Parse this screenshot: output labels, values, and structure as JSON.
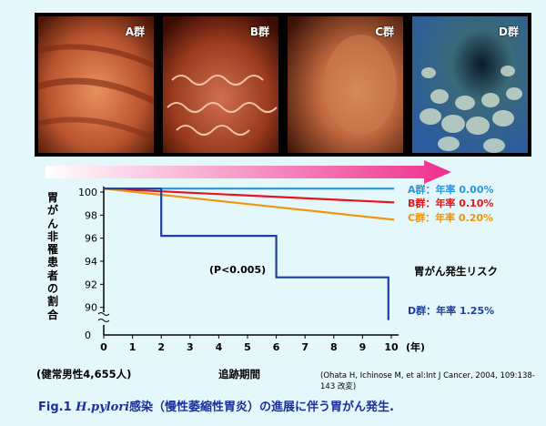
{
  "photos": [
    {
      "label": "A群",
      "base": "#b8542e",
      "dark": "#6a2210",
      "light": "#e08a5a"
    },
    {
      "label": "B群",
      "base": "#b04a2c",
      "dark": "#5a1a0c",
      "light": "#e8a888"
    },
    {
      "label": "C群",
      "base": "#c0683e",
      "dark": "#6a2e14",
      "light": "#e8a070"
    },
    {
      "label": "D群",
      "base": "#5a7a8a",
      "dark": "#1e3a4a",
      "light": "#bcd4dc"
    }
  ],
  "ylabel": "胃がん非罹患者の割合",
  "risk_title": "胃がん発生リスク",
  "pvalue": "(P<0.005)",
  "x_unit": "(年)",
  "footer_left": "(健常男性4,655人)",
  "footer_mid": "追跡期間",
  "source": "(Ohata H, Ichinose M, et al:Int J Cancer, 2004, 109:138-143 改変)",
  "caption": {
    "prefix": "Fig.1",
    "italic": "H.pylori",
    "rest": "感染（慢性萎縮性胃炎）の進展に伴う胃がん発生."
  },
  "chart_data": {
    "type": "line",
    "xlabel": "追跡期間",
    "x_unit": "(年)",
    "ylabel": "胃がん非罹患者の割合",
    "xlim": [
      0,
      10
    ],
    "ylim": [
      88,
      100
    ],
    "y_axis_break": true,
    "x_ticks": [
      0,
      1,
      2,
      3,
      4,
      5,
      6,
      7,
      8,
      9,
      10
    ],
    "y_ticks": [
      88,
      90,
      92,
      94,
      96,
      98,
      100
    ],
    "y_extra_tick_label": "0",
    "series": [
      {
        "name": "A群",
        "label": "A群：年率 0.00%",
        "color": "#2a95e0",
        "points": [
          [
            0,
            100.3
          ],
          [
            10.1,
            100.3
          ]
        ]
      },
      {
        "name": "B群",
        "label": "B群：年率 0.10%",
        "color": "#e8141c",
        "points": [
          [
            0,
            100.3
          ],
          [
            10.1,
            99.1
          ]
        ]
      },
      {
        "name": "C群",
        "label": "C群：年率 0.20%",
        "color": "#f0950c",
        "points": [
          [
            0,
            100.3
          ],
          [
            10.1,
            97.6
          ]
        ]
      },
      {
        "name": "D群",
        "label": "D群：年率 1.25%",
        "color": "#1d3fa0",
        "points": [
          [
            0,
            100.3
          ],
          [
            2,
            100.3
          ],
          [
            2,
            96.2
          ],
          [
            6,
            96.2
          ],
          [
            6,
            92.6
          ],
          [
            9.9,
            92.6
          ],
          [
            9.9,
            88.9
          ]
        ]
      }
    ],
    "annotation": "(P<0.005)"
  },
  "gradient_arrow": {
    "from": "#ffffff",
    "to": "#ee2f8c"
  }
}
